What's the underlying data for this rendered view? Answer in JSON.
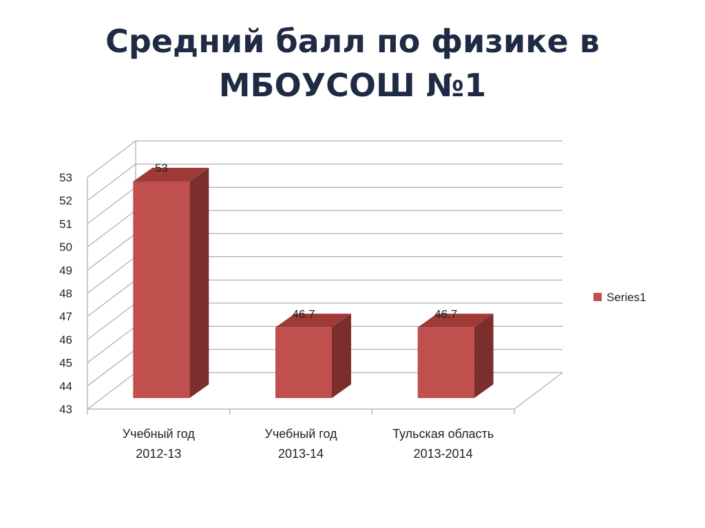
{
  "title_lines": [
    "Средний балл по физике в",
    "МБОУСОШ №1"
  ],
  "colors": {
    "bar_front": "#c0504d",
    "bar_top": "#9e3b38",
    "bar_side": "#7c2e2c",
    "grid": "#9a9a9a",
    "title": "#1f2a44"
  },
  "chart_data": {
    "type": "bar",
    "title": "Средний балл по физике в МБОУСОШ №1",
    "categories": [
      [
        "Учебный год",
        "2012-13"
      ],
      [
        "Учебный год",
        "2013-14"
      ],
      [
        "Тульская область",
        "2013-2014"
      ]
    ],
    "series": [
      {
        "name": "Series1",
        "values": [
          53,
          46.7,
          46.7
        ],
        "labels": [
          "53",
          "46.7",
          "46.7"
        ]
      }
    ],
    "ylim": [
      43,
      53
    ],
    "yticks": [
      "43",
      "44",
      "45",
      "46",
      "47",
      "48",
      "49",
      "50",
      "51",
      "52",
      "53"
    ],
    "grid": true,
    "legend_position": "right",
    "style": "3d-clustered-column"
  }
}
